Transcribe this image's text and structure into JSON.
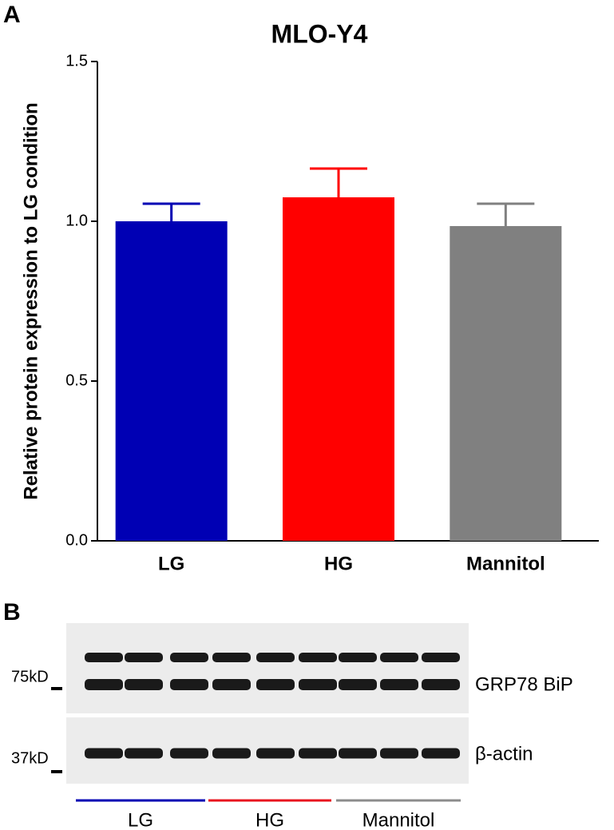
{
  "panel_labels": [
    "A",
    "B"
  ],
  "chart_data": {
    "type": "bar",
    "title": "MLO-Y4",
    "y_label": "Relative protein expression to LG condition",
    "categories": [
      "LG",
      "HG",
      "Mannitol"
    ],
    "values": [
      1.0,
      1.075,
      0.985
    ],
    "errors": [
      0.055,
      0.09,
      0.07
    ],
    "colors": [
      "#0000b4",
      "#ff0000",
      "#808080"
    ],
    "ylim": [
      0,
      1.5
    ],
    "yticks": [
      {
        "value": 0,
        "label": "0.0"
      },
      0.5,
      {
        "value": 1,
        "label": "1.0"
      },
      1.5
    ]
  },
  "blot": {
    "markers": [
      "75kD",
      "37kD"
    ],
    "proteins": [
      "GRP78 BiP",
      "β-actin"
    ],
    "groups": [
      {
        "name": "LG",
        "color": "#0000b4"
      },
      {
        "name": "HG",
        "color": "#e8141e"
      },
      {
        "name": "Mannitol",
        "color": "#8c8c8c"
      }
    ]
  }
}
